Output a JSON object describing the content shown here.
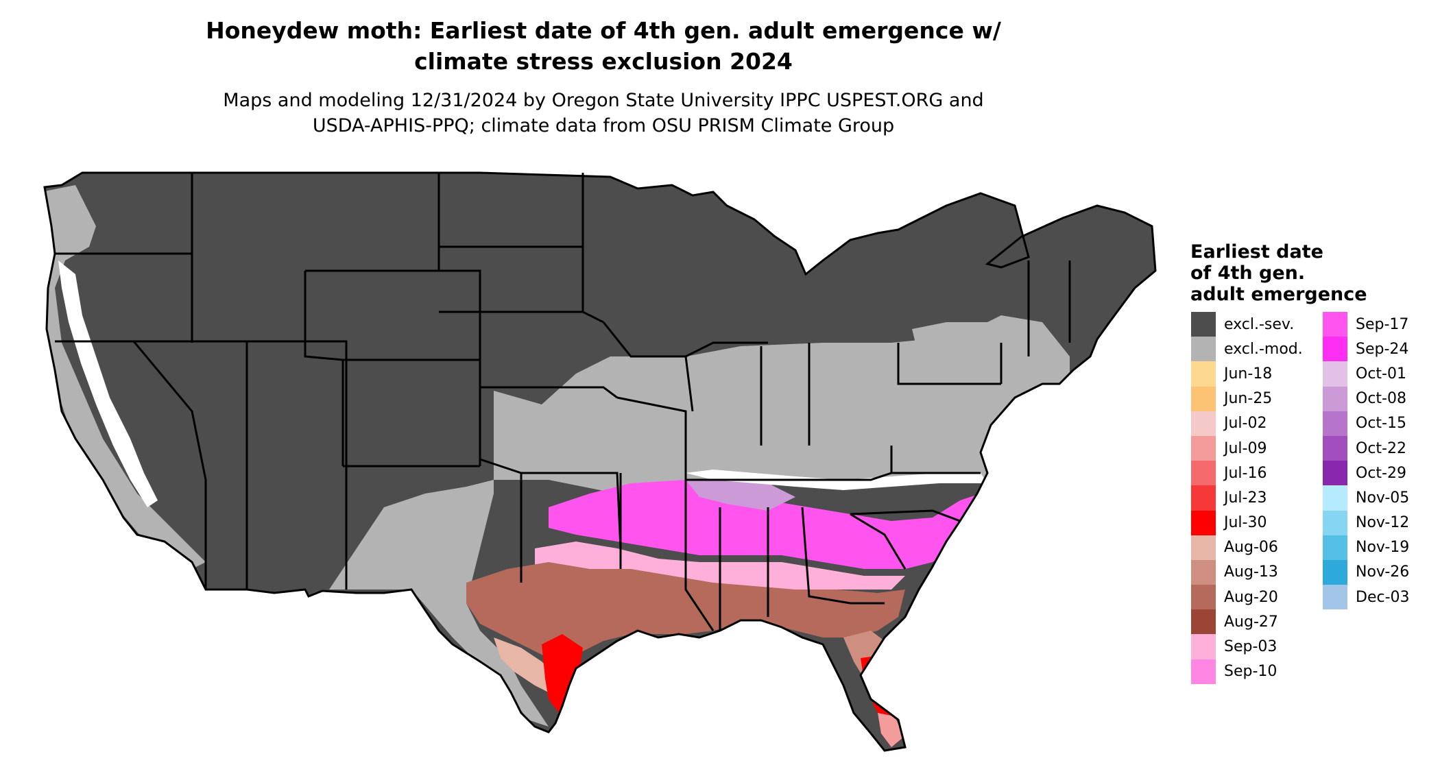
{
  "title_line1": "Honeydew moth: Earliest date of 4th gen. adult emergence w/",
  "title_line2": "climate stress exclusion 2024",
  "subtitle_line1": "Maps and modeling 12/31/2024 by Oregon State University IPPC USPEST.ORG and",
  "subtitle_line2": "USDA-APHIS-PPQ; climate data from OSU PRISM Climate Group",
  "legend": {
    "title_lines": [
      "Earliest date",
      "of 4th gen.",
      "adult emergence"
    ],
    "column1": [
      {
        "label": "excl.-sev.",
        "color": "#4d4d4d"
      },
      {
        "label": "excl.-mod.",
        "color": "#b3b3b3"
      },
      {
        "label": "Jun-18",
        "color": "#fdd98f"
      },
      {
        "label": "Jun-25",
        "color": "#fdc375"
      },
      {
        "label": "Jul-02",
        "color": "#f4c9c8"
      },
      {
        "label": "Jul-09",
        "color": "#f49b9b"
      },
      {
        "label": "Jul-16",
        "color": "#f56a6a"
      },
      {
        "label": "Jul-23",
        "color": "#f73838"
      },
      {
        "label": "Jul-30",
        "color": "#ff0000"
      },
      {
        "label": "Aug-06",
        "color": "#e8b6a7"
      },
      {
        "label": "Aug-13",
        "color": "#cf8f80"
      },
      {
        "label": "Aug-20",
        "color": "#b56a5b"
      },
      {
        "label": "Aug-27",
        "color": "#9c4535"
      },
      {
        "label": "Sep-03",
        "color": "#ffb0da"
      },
      {
        "label": "Sep-10",
        "color": "#ff86e2"
      }
    ],
    "column2": [
      {
        "label": "Sep-17",
        "color": "#ff55ee"
      },
      {
        "label": "Sep-24",
        "color": "#fd2ef4"
      },
      {
        "label": "Oct-01",
        "color": "#e3c0e6"
      },
      {
        "label": "Oct-08",
        "color": "#cd9ad8"
      },
      {
        "label": "Oct-15",
        "color": "#b674cb"
      },
      {
        "label": "Oct-22",
        "color": "#a04ebd"
      },
      {
        "label": "Oct-29",
        "color": "#8a27af"
      },
      {
        "label": "Nov-05",
        "color": "#b5ebfd"
      },
      {
        "label": "Nov-12",
        "color": "#86d5f1"
      },
      {
        "label": "Nov-19",
        "color": "#56bfe6"
      },
      {
        "label": "Nov-26",
        "color": "#2da9db"
      },
      {
        "label": "Dec-03",
        "color": "#a3c5e8"
      }
    ]
  },
  "map_colors": {
    "outline": "#000000",
    "unsuitable": "#ffffff"
  }
}
